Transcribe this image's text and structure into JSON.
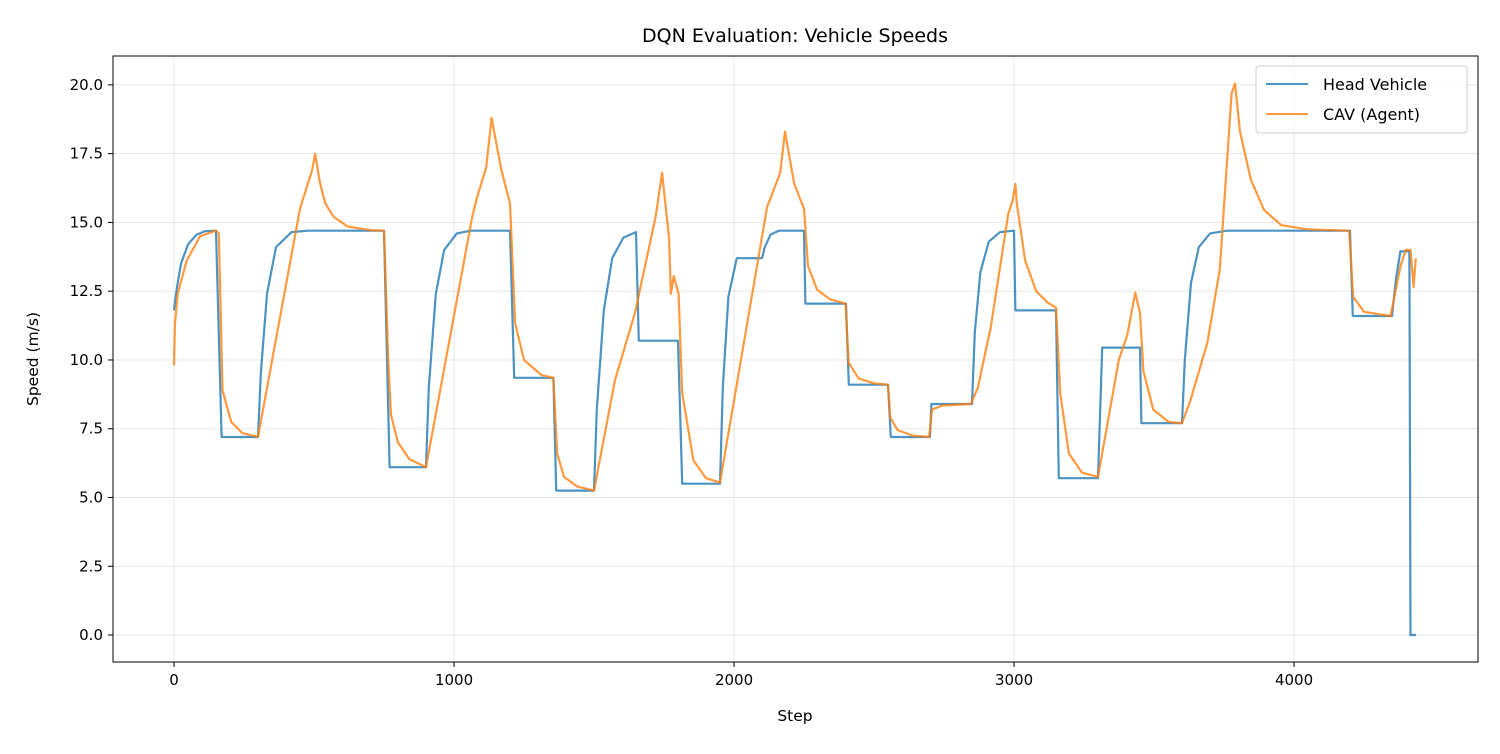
{
  "chart_data": {
    "type": "line",
    "title": "DQN Evaluation: Vehicle Speeds",
    "xlabel": "Step",
    "ylabel": "Speed (m/s)",
    "xlim": [
      -218,
      4657
    ],
    "ylim": [
      -0.98,
      21.05
    ],
    "xticks": [
      0,
      1000,
      2000,
      3000,
      4000
    ],
    "xtick_labels": [
      "0",
      "1000",
      "2000",
      "3000",
      "4000"
    ],
    "yticks": [
      0,
      2.5,
      5,
      7.5,
      10,
      12.5,
      15,
      17.5,
      20
    ],
    "ytick_labels": [
      "0.0",
      "2.5",
      "5.0",
      "7.5",
      "10.0",
      "12.5",
      "15.0",
      "17.5",
      "20.0"
    ],
    "grid": true,
    "legend_position": "top-right",
    "series": [
      {
        "name": "Head Vehicle",
        "color": "#1f77b4",
        "points": [
          [
            0,
            11.8
          ],
          [
            10,
            12.6
          ],
          [
            25,
            13.5
          ],
          [
            50,
            14.2
          ],
          [
            80,
            14.55
          ],
          [
            110,
            14.68
          ],
          [
            150,
            14.7
          ],
          [
            170,
            7.2
          ],
          [
            300,
            7.2
          ],
          [
            310,
            9.5
          ],
          [
            332,
            12.4
          ],
          [
            364,
            14.1
          ],
          [
            420,
            14.65
          ],
          [
            480,
            14.7
          ],
          [
            750,
            14.7
          ],
          [
            770,
            6.1
          ],
          [
            900,
            6.1
          ],
          [
            910,
            9.0
          ],
          [
            935,
            12.4
          ],
          [
            965,
            14.0
          ],
          [
            1010,
            14.6
          ],
          [
            1060,
            14.7
          ],
          [
            1200,
            14.7
          ],
          [
            1215,
            9.35
          ],
          [
            1355,
            9.35
          ],
          [
            1365,
            5.25
          ],
          [
            1500,
            5.25
          ],
          [
            1510,
            8.2
          ],
          [
            1535,
            11.8
          ],
          [
            1565,
            13.7
          ],
          [
            1605,
            14.45
          ],
          [
            1650,
            14.65
          ],
          [
            1660,
            10.7
          ],
          [
            1800,
            10.7
          ],
          [
            1815,
            5.5
          ],
          [
            1950,
            5.5
          ],
          [
            1960,
            9.0
          ],
          [
            1980,
            12.3
          ],
          [
            2010,
            13.7
          ],
          [
            2100,
            13.7
          ],
          [
            2110,
            14.1
          ],
          [
            2130,
            14.55
          ],
          [
            2160,
            14.7
          ],
          [
            2250,
            14.7
          ],
          [
            2255,
            12.05
          ],
          [
            2400,
            12.05
          ],
          [
            2410,
            9.1
          ],
          [
            2550,
            9.1
          ],
          [
            2560,
            7.2
          ],
          [
            2700,
            7.2
          ],
          [
            2705,
            8.4
          ],
          [
            2850,
            8.4
          ],
          [
            2860,
            11.0
          ],
          [
            2880,
            13.2
          ],
          [
            2910,
            14.3
          ],
          [
            2950,
            14.65
          ],
          [
            3000,
            14.7
          ],
          [
            3005,
            11.8
          ],
          [
            3150,
            11.8
          ],
          [
            3160,
            5.7
          ],
          [
            3300,
            5.7
          ],
          [
            3315,
            10.45
          ],
          [
            3450,
            10.45
          ],
          [
            3455,
            7.7
          ],
          [
            3600,
            7.7
          ],
          [
            3610,
            10.0
          ],
          [
            3632,
            12.8
          ],
          [
            3660,
            14.1
          ],
          [
            3700,
            14.6
          ],
          [
            3760,
            14.7
          ],
          [
            4200,
            14.7
          ],
          [
            4210,
            11.6
          ],
          [
            4350,
            11.6
          ],
          [
            4365,
            13.0
          ],
          [
            4380,
            13.95
          ],
          [
            4412,
            13.95
          ],
          [
            4416,
            0
          ],
          [
            4436,
            0
          ]
        ]
      },
      {
        "name": "CAV (Agent)",
        "color": "#ff7f0e",
        "points": [
          [
            0,
            9.8
          ],
          [
            3,
            11.3
          ],
          [
            13,
            12.4
          ],
          [
            45,
            13.6
          ],
          [
            93,
            14.5
          ],
          [
            149,
            14.7
          ],
          [
            160,
            14.6
          ],
          [
            173,
            8.9
          ],
          [
            204,
            7.75
          ],
          [
            243,
            7.35
          ],
          [
            300,
            7.2
          ],
          [
            450,
            15.5
          ],
          [
            493,
            16.9
          ],
          [
            504,
            17.5
          ],
          [
            520,
            16.5
          ],
          [
            540,
            15.7
          ],
          [
            570,
            15.2
          ],
          [
            620,
            14.85
          ],
          [
            700,
            14.72
          ],
          [
            750,
            14.7
          ],
          [
            765,
            10.0
          ],
          [
            775,
            8.0
          ],
          [
            800,
            7.0
          ],
          [
            840,
            6.4
          ],
          [
            900,
            6.1
          ],
          [
            1065,
            15.2
          ],
          [
            1082,
            15.9
          ],
          [
            1115,
            17.0
          ],
          [
            1134,
            18.8
          ],
          [
            1169,
            16.9
          ],
          [
            1200,
            15.7
          ],
          [
            1218,
            11.35
          ],
          [
            1250,
            10.0
          ],
          [
            1312,
            9.45
          ],
          [
            1355,
            9.35
          ],
          [
            1368,
            6.6
          ],
          [
            1393,
            5.75
          ],
          [
            1440,
            5.4
          ],
          [
            1500,
            5.25
          ],
          [
            1575,
            9.27
          ],
          [
            1646,
            11.7
          ],
          [
            1720,
            15.2
          ],
          [
            1743,
            16.8
          ],
          [
            1768,
            14.4
          ],
          [
            1774,
            12.4
          ],
          [
            1785,
            13.05
          ],
          [
            1802,
            12.4
          ],
          [
            1815,
            8.8
          ],
          [
            1855,
            6.35
          ],
          [
            1900,
            5.7
          ],
          [
            1950,
            5.55
          ],
          [
            2118,
            15.56
          ],
          [
            2165,
            16.8
          ],
          [
            2182,
            18.3
          ],
          [
            2215,
            16.4
          ],
          [
            2250,
            15.5
          ],
          [
            2264,
            13.4
          ],
          [
            2297,
            12.55
          ],
          [
            2343,
            12.2
          ],
          [
            2398,
            12.05
          ],
          [
            2409,
            9.9
          ],
          [
            2445,
            9.33
          ],
          [
            2499,
            9.15
          ],
          [
            2550,
            9.1
          ],
          [
            2558,
            7.9
          ],
          [
            2584,
            7.45
          ],
          [
            2638,
            7.25
          ],
          [
            2697,
            7.2
          ],
          [
            2707,
            8.2
          ],
          [
            2746,
            8.35
          ],
          [
            2846,
            8.4
          ],
          [
            2871,
            9.0
          ],
          [
            2917,
            11.2
          ],
          [
            2979,
            15.3
          ],
          [
            2995,
            15.8
          ],
          [
            3005,
            16.4
          ],
          [
            3010,
            15.7
          ],
          [
            3040,
            13.6
          ],
          [
            3079,
            12.5
          ],
          [
            3118,
            12.1
          ],
          [
            3150,
            11.9
          ],
          [
            3165,
            8.8
          ],
          [
            3196,
            6.6
          ],
          [
            3243,
            5.9
          ],
          [
            3300,
            5.75
          ],
          [
            3374,
            10.0
          ],
          [
            3404,
            10.9
          ],
          [
            3433,
            12.45
          ],
          [
            3450,
            11.7
          ],
          [
            3462,
            9.6
          ],
          [
            3497,
            8.2
          ],
          [
            3552,
            7.75
          ],
          [
            3600,
            7.7
          ],
          [
            3629,
            8.5
          ],
          [
            3691,
            10.65
          ],
          [
            3735,
            13.3
          ],
          [
            3777,
            19.7
          ],
          [
            3789,
            20.05
          ],
          [
            3807,
            18.3
          ],
          [
            3846,
            16.55
          ],
          [
            3893,
            15.45
          ],
          [
            3954,
            14.9
          ],
          [
            4047,
            14.75
          ],
          [
            4197,
            14.7
          ],
          [
            4211,
            12.3
          ],
          [
            4250,
            11.75
          ],
          [
            4345,
            11.6
          ],
          [
            4380,
            13.4
          ],
          [
            4399,
            14.0
          ],
          [
            4416,
            14.0
          ],
          [
            4427,
            12.65
          ],
          [
            4435,
            13.7
          ]
        ]
      }
    ]
  }
}
